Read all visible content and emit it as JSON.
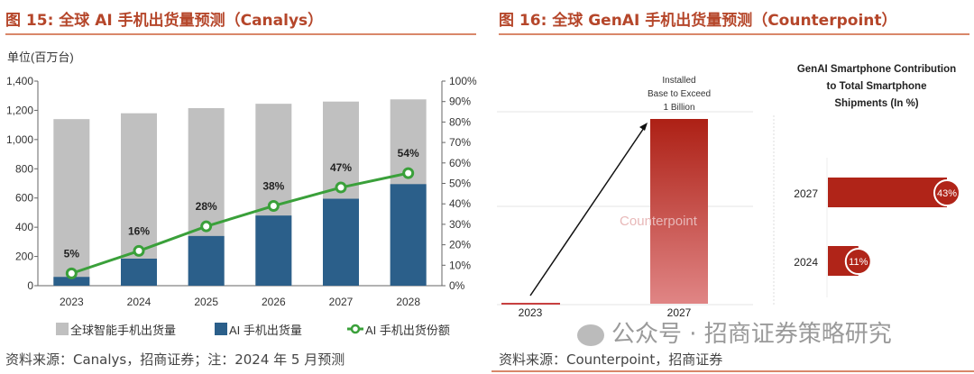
{
  "left": {
    "title": "图 15:  全球  AI 手机出货量预测（Canalys）",
    "source": "资料来源：Canalys，招商证券；注：2024 年 5 月预测"
  },
  "right": {
    "title": "图 16:  全球 GenAI 手机出货量预测（Counterpoint）",
    "source": "资料来源：Counterpoint，招商证券"
  },
  "watermark": "公众号 · 招商证券策略研究",
  "chart_data": [
    {
      "type": "bar",
      "unit_label": "单位(百万台)",
      "categories": [
        "2023",
        "2024",
        "2025",
        "2026",
        "2027",
        "2028"
      ],
      "series": [
        {
          "name": "全球智能手机出货量",
          "values": [
            1140,
            1180,
            1215,
            1245,
            1260,
            1275
          ],
          "color": "#c0c0c0"
        },
        {
          "name": "AI 手机出货量",
          "values": [
            60,
            185,
            340,
            480,
            595,
            695
          ],
          "color": "#2b5f8a"
        },
        {
          "name": "AI 手机出货份额",
          "type": "line",
          "axis": "right",
          "values": [
            5,
            16,
            28,
            38,
            47,
            54
          ],
          "labels": [
            "5%",
            "16%",
            "28%",
            "38%",
            "47%",
            "54%"
          ],
          "color": "#3aa03a"
        }
      ],
      "ylim": [
        0,
        1400
      ],
      "yticks": [
        "0",
        "200",
        "400",
        "600",
        "800",
        "1,000",
        "1,200",
        "1,400"
      ],
      "y2lim": [
        0,
        100
      ],
      "y2ticks": [
        "0%",
        "10%",
        "20%",
        "30%",
        "40%",
        "50%",
        "60%",
        "70%",
        "80%",
        "90%",
        "100%"
      ],
      "legend": "bottom"
    },
    {
      "type": "bar",
      "categories": [
        "2023",
        "2027"
      ],
      "annotation": [
        "Installed",
        "Base to Exceed",
        "1 Billion"
      ],
      "color": "#b02418",
      "watermark": "Counterpoint"
    },
    {
      "type": "bar",
      "orientation": "horizontal",
      "title": [
        "GenAI Smartphone Contribution",
        "to Total Smartphone",
        "Shipments (In %)"
      ],
      "categories": [
        "2027",
        "2024"
      ],
      "values": [
        43,
        11
      ],
      "labels": [
        "43%",
        "11%"
      ],
      "color": "#b02418"
    }
  ]
}
